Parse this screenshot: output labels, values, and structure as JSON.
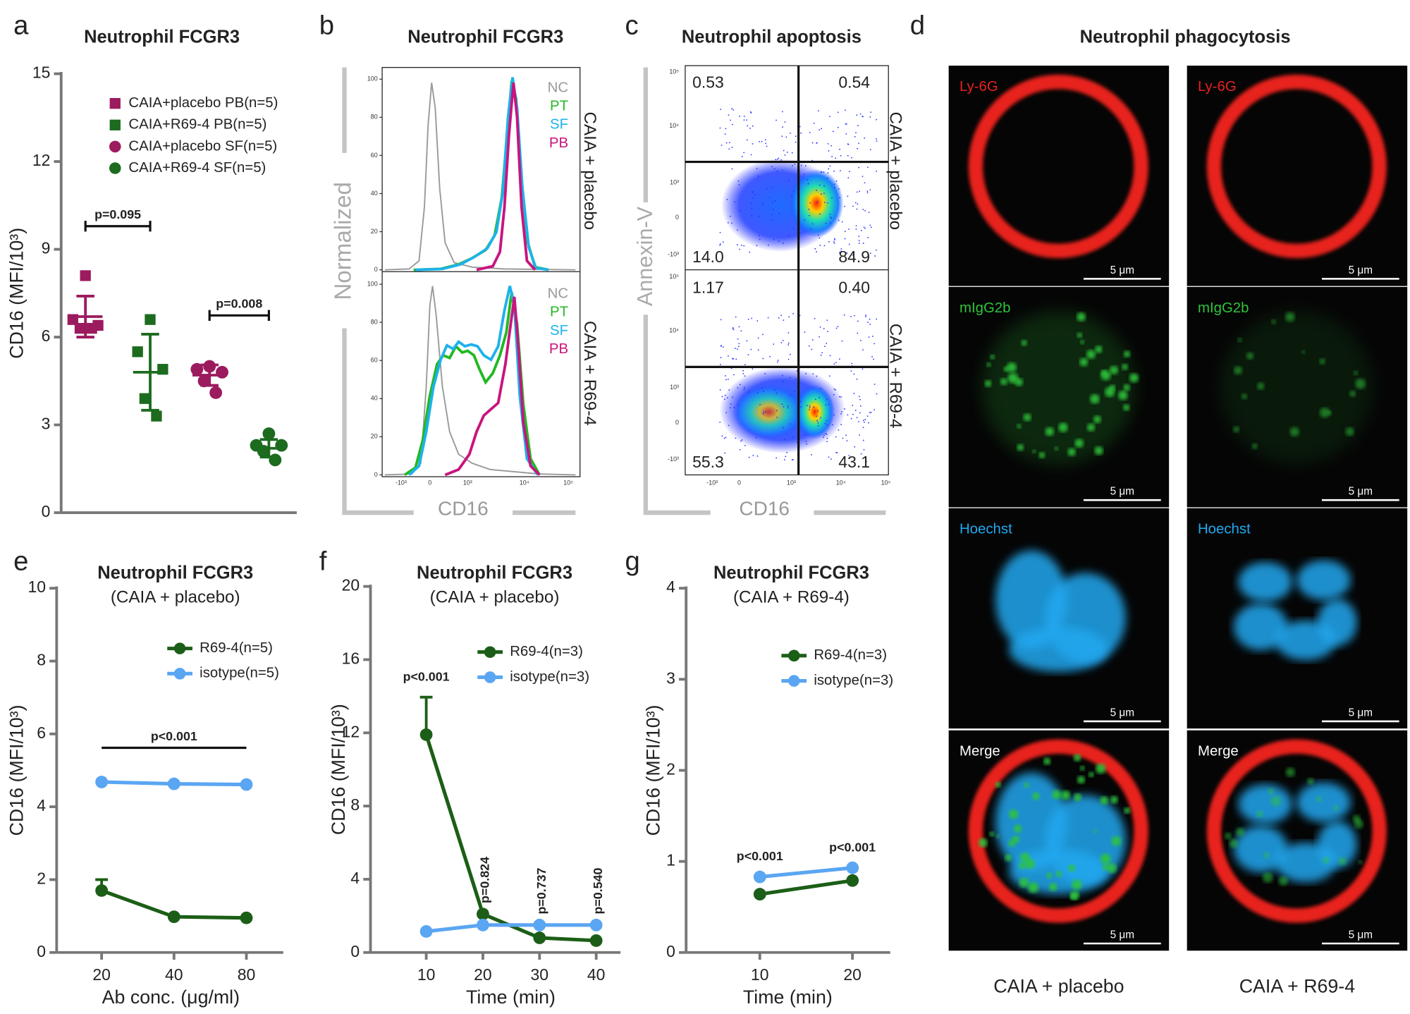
{
  "panel_labels": [
    "a",
    "b",
    "c",
    "d",
    "e",
    "f",
    "g"
  ],
  "chart_data": [
    {
      "type": "dot",
      "title": "Neutrophil FCGR3",
      "ylabel": "CD16 (MFI/10³)",
      "ylim": [
        0,
        15
      ],
      "yticks": [
        0,
        3,
        6,
        9,
        12,
        15
      ],
      "series": [
        {
          "name": "CAIA+placebo PB(n=5)",
          "color": "#9b1b5e",
          "marker": "square",
          "values": [
            8.1,
            6.6,
            6.4,
            6.3,
            6.3
          ],
          "mean": 6.7,
          "sd": 0.7
        },
        {
          "name": "CAIA+R69-4 PB(n=5)",
          "color": "#1c6b1f",
          "marker": "square",
          "values": [
            6.6,
            5.5,
            4.9,
            3.9,
            3.3
          ],
          "mean": 4.8,
          "sd": 1.3
        },
        {
          "name": "CAIA+placebo SF(n=5)",
          "color": "#9b1b5e",
          "marker": "circle",
          "values": [
            5.0,
            4.9,
            4.8,
            4.5,
            4.1
          ],
          "mean": 4.7,
          "sd": 0.35
        },
        {
          "name": "CAIA+R69-4 SF(n=5)",
          "color": "#1c6b1f",
          "marker": "circle",
          "values": [
            2.7,
            2.3,
            2.3,
            2.1,
            1.8
          ],
          "mean": 2.2,
          "sd": 0.3
        }
      ],
      "annotations": [
        {
          "text": "p=0.095",
          "between": [
            0,
            1
          ]
        },
        {
          "text": "p=0.008",
          "between": [
            2,
            3
          ]
        }
      ]
    },
    {
      "type": "line",
      "title": "Neutrophil FCGR3",
      "subtitle": "(CAIA + placebo)",
      "ylabel": "CD16 (MFI/10³)",
      "xlabel": "Ab conc. (μg/ml)",
      "categories": [
        "20",
        "40",
        "80"
      ],
      "ylim": [
        0,
        10
      ],
      "yticks": [
        0,
        2,
        4,
        6,
        8,
        10
      ],
      "series": [
        {
          "name": "R69-4(n=5)",
          "color": "#1c5e17",
          "values": [
            1.7,
            0.98,
            0.95
          ],
          "errors": [
            0.3,
            null,
            null
          ]
        },
        {
          "name": "isotype(n=5)",
          "color": "#5aa6f2",
          "values": [
            4.68,
            4.63,
            4.61
          ]
        }
      ],
      "annotations": [
        {
          "text": "p<0.001",
          "span": [
            0,
            2
          ]
        }
      ]
    },
    {
      "type": "line",
      "title": "Neutrophil FCGR3",
      "subtitle": "(CAIA + placebo)",
      "ylabel": "CD16 (MFI/10³)",
      "xlabel": "Time (min)",
      "categories": [
        "10",
        "20",
        "30",
        "40"
      ],
      "ylim": [
        0,
        20
      ],
      "yticks": [
        0,
        4,
        8,
        12,
        16,
        20
      ],
      "series": [
        {
          "name": "R69-4(n=3)",
          "color": "#1c5e17",
          "values": [
            11.9,
            2.1,
            0.8,
            0.65
          ],
          "errors": [
            2.05,
            null,
            null,
            null
          ]
        },
        {
          "name": "isotype(n=3)",
          "color": "#5aa6f2",
          "values": [
            1.15,
            1.5,
            1.5,
            1.5
          ]
        }
      ],
      "annotations": [
        {
          "text": "p<0.001",
          "at": 0
        },
        {
          "text": "p=0.824",
          "at": 1,
          "rotated": true
        },
        {
          "text": "p=0.737",
          "at": 2,
          "rotated": true
        },
        {
          "text": "p=0.540",
          "at": 3,
          "rotated": true
        }
      ]
    },
    {
      "type": "line",
      "title": "Neutrophil FCGR3",
      "subtitle": "(CAIA + R69-4)",
      "ylabel": "CD16 (MFI/10³)",
      "xlabel": "Time (min)",
      "categories": [
        "10",
        "20"
      ],
      "ylim": [
        0,
        4
      ],
      "yticks": [
        0,
        1,
        2,
        3,
        4
      ],
      "series": [
        {
          "name": "R69-4(n=3)",
          "color": "#1c5e17",
          "values": [
            0.64,
            0.79
          ]
        },
        {
          "name": "isotype(n=3)",
          "color": "#5aa6f2",
          "values": [
            0.83,
            0.93
          ]
        }
      ],
      "annotations": [
        {
          "text": "p<0.001",
          "at": 0
        },
        {
          "text": "p<0.001",
          "at": 1
        }
      ]
    }
  ],
  "flow_histogram": {
    "title": "Neutrophil FCGR3",
    "ylabel": "Normalized",
    "xlabel": "CD16",
    "yticks": [
      0,
      20,
      40,
      60,
      80,
      100
    ],
    "xticks": [
      "-10³",
      "0",
      "10³",
      "10⁴",
      "10⁵"
    ],
    "legend": [
      {
        "name": "NC",
        "color": "#9a9a9a"
      },
      {
        "name": "PT",
        "color": "#22b822"
      },
      {
        "name": "SF",
        "color": "#1eb2ea"
      },
      {
        "name": "PB",
        "color": "#c8147e"
      }
    ],
    "rows": [
      "CAIA + placebo",
      "CAIA + R69-4"
    ]
  },
  "flow_dot": {
    "title": "Neutrophil apoptosis",
    "ylabel": "Annexin-V",
    "xlabel": "CD16",
    "yticks": [
      "10⁵",
      "10⁴",
      "10³",
      "0",
      "-10³"
    ],
    "xticks": [
      "-10³",
      "0",
      "10³",
      "10⁴",
      "10⁵"
    ],
    "rows": [
      {
        "label": "CAIA + placebo",
        "quadrants": [
          "0.53",
          "0.54",
          "14.0",
          "84.9"
        ]
      },
      {
        "label": "CAIA + R69-4",
        "quadrants": [
          "1.17",
          "0.40",
          "55.3",
          "43.1"
        ]
      }
    ]
  },
  "microscopy": {
    "title": "Neutrophil phagocytosis",
    "scale_bar": "5 μm",
    "channels": [
      {
        "name": "Ly-6G",
        "color": "#e8221e"
      },
      {
        "name": "mIgG2b",
        "color": "#2ec43a"
      },
      {
        "name": "Hoechst",
        "color": "#20a8f0"
      },
      {
        "name": "Merge",
        "color": "#ffffff"
      }
    ],
    "columns": [
      "CAIA + placebo",
      "CAIA + R69-4"
    ]
  }
}
